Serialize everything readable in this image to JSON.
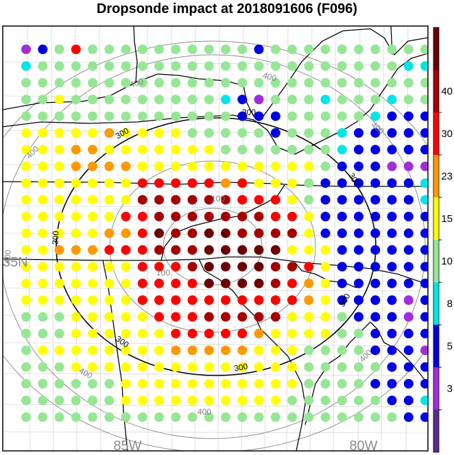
{
  "title": "Dropsonde impact at 2018091606 (F096)",
  "lat_labels": [
    "35N"
  ],
  "lon_labels": [
    "85W",
    "80W"
  ],
  "contour_labels": [
    "100",
    "100",
    "300",
    "300",
    "300",
    "300",
    "300",
    "300",
    "300",
    "400",
    "400",
    "400",
    "400",
    "400",
    "400",
    "400"
  ],
  "colorbar": {
    "ticks": [
      "3",
      "5",
      "8",
      "10",
      "15",
      "23",
      "30",
      "40"
    ],
    "colors": [
      "#5b2a8f",
      "#a22ddc",
      "#0000e6",
      "#00e6e6",
      "#96e696",
      "#ffff00",
      "#ff9900",
      "#ff0000",
      "#a50000",
      "#6b0000"
    ]
  },
  "chart_data": {
    "type": "map-dots",
    "title": "Dropsonde impact at 2018091606 (F096)",
    "levels": [
      3,
      5,
      8,
      10,
      15,
      23,
      30,
      40
    ],
    "class_colors": [
      "#5b2a8f",
      "#a22ddc",
      "#0000e6",
      "#00e6e6",
      "#96e696",
      "#ffff00",
      "#ff9900",
      "#ff0000",
      "#a50000",
      "#6b0000"
    ],
    "grid_classes": [
      "1247444444444424444444444",
      "3444444444444444444444433",
      "4444444444444444444444444",
      "4454444444443214443444344",
      "4444444444444222444443222",
      "5555565555444442444322222",
      "5556655555554444444322222",
      "5556666555555555554222111",
      "5555555777776755542222223",
      "5555555888888777542222223",
      "5555557788888887752222222",
      "5555566798899888852222222",
      "5566677788899999555222222",
      "5555555777899998875222222",
      "5555555777799998765222222",
      "5555555777777777765222212",
      "4445555577788888555422212",
      "4445555557777765555442222",
      "4555555556666655544442221",
      "4445555555555555544444222",
      "4444445555555555544442222",
      "4444445555555555444444223",
      "4444444444444444444444422"
    ]
  }
}
